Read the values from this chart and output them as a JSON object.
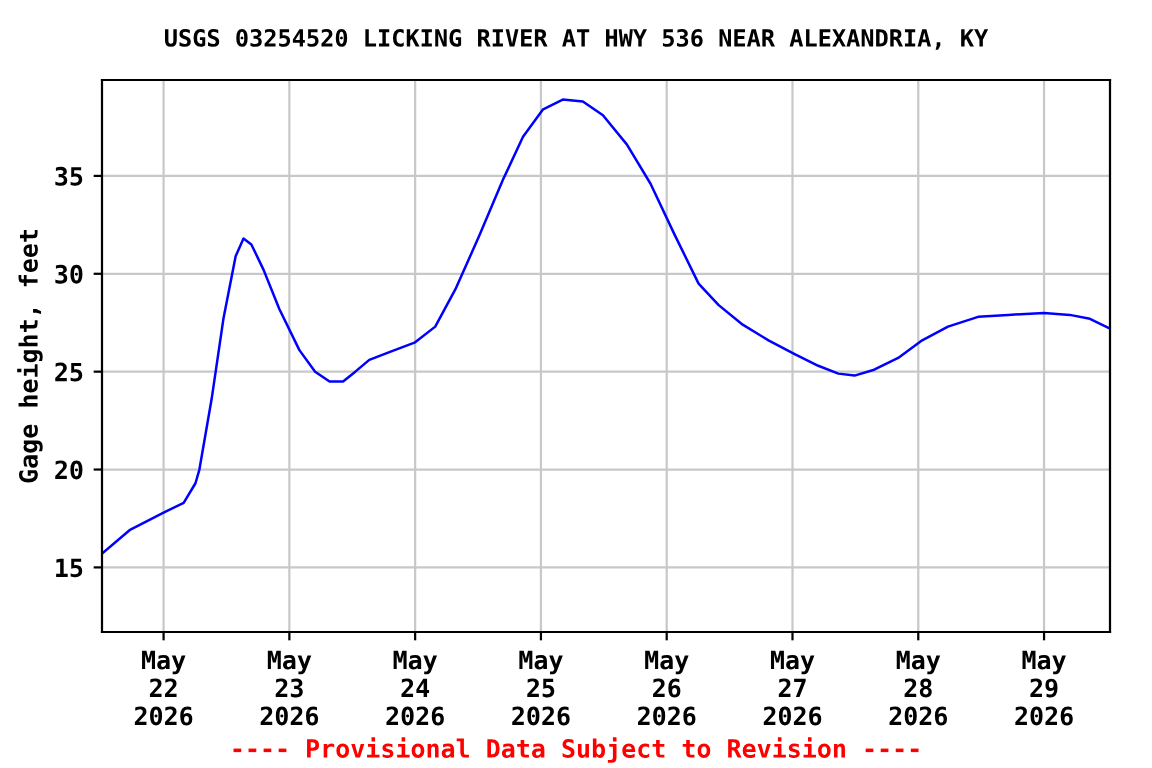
{
  "chart_data": {
    "type": "line",
    "title": "USGS 03254520 LICKING RIVER AT HWY 536 NEAR ALEXANDRIA, KY",
    "ylabel": "Gage height, feet",
    "annotations": [
      "---- Provisional Data Subject to Revision ----"
    ],
    "x": [
      "2026-05-21T12:15",
      "2026-05-21T17:30",
      "2026-05-22T00:00",
      "2026-05-22T03:50",
      "2026-05-22T06:05",
      "2026-05-22T06:50",
      "2026-05-22T09:10",
      "2026-05-22T11:25",
      "2026-05-22T13:45",
      "2026-05-22T15:15",
      "2026-05-22T16:45",
      "2026-05-22T19:05",
      "2026-05-22T22:05",
      "2026-05-23T01:55",
      "2026-05-23T04:55",
      "2026-05-23T07:40",
      "2026-05-23T10:15",
      "2026-05-23T12:35",
      "2026-05-23T15:15",
      "2026-05-23T19:05",
      "2026-05-24T00:00",
      "2026-05-24T03:50",
      "2026-05-24T07:40",
      "2026-05-24T12:10",
      "2026-05-24T16:45",
      "2026-05-24T20:35",
      "2026-05-25T00:25",
      "2026-05-25T04:10",
      "2026-05-25T08:00",
      "2026-05-25T11:50",
      "2026-05-25T16:25",
      "2026-05-25T20:55",
      "2026-05-26T01:30",
      "2026-05-26T06:05",
      "2026-05-26T09:55",
      "2026-05-26T14:30",
      "2026-05-26T19:25",
      "2026-05-27T00:25",
      "2026-05-27T04:55",
      "2026-05-27T08:45",
      "2026-05-27T11:50",
      "2026-05-27T15:35",
      "2026-05-27T20:10",
      "2026-05-28T00:45",
      "2026-05-28T05:40",
      "2026-05-28T11:25",
      "2026-05-28T17:10",
      "2026-05-29T00:00",
      "2026-05-29T04:55",
      "2026-05-29T08:45",
      "2026-05-29T12:35"
    ],
    "series": [
      {
        "color": "#0000ff",
        "values": [
          15.7,
          16.9,
          17.8,
          18.3,
          19.3,
          20.0,
          23.6,
          27.7,
          30.9,
          31.8,
          31.5,
          30.2,
          28.2,
          26.1,
          25.0,
          24.5,
          24.5,
          25.0,
          25.6,
          26.0,
          26.5,
          27.3,
          29.2,
          31.9,
          34.8,
          37.0,
          38.4,
          38.9,
          38.8,
          38.1,
          36.6,
          34.6,
          32.0,
          29.5,
          28.4,
          27.4,
          26.6,
          25.9,
          25.3,
          24.9,
          24.8,
          25.1,
          25.7,
          26.6,
          27.3,
          27.8,
          27.9,
          28.0,
          27.9,
          27.7,
          27.2
        ]
      }
    ],
    "xlim": [
      "2026-05-21T12:15",
      "2026-05-29T12:35"
    ],
    "xticks": [
      {
        "value": "2026-05-22",
        "label": "May\n22\n2026"
      },
      {
        "value": "2026-05-23",
        "label": "May\n23\n2026"
      },
      {
        "value": "2026-05-24",
        "label": "May\n24\n2026"
      },
      {
        "value": "2026-05-25",
        "label": "May\n25\n2026"
      },
      {
        "value": "2026-05-26",
        "label": "May\n26\n2026"
      },
      {
        "value": "2026-05-27",
        "label": "May\n27\n2026"
      },
      {
        "value": "2026-05-28",
        "label": "May\n28\n2026"
      },
      {
        "value": "2026-05-29",
        "label": "May\n29\n2026"
      }
    ],
    "ylim": [
      11.7,
      39.9
    ],
    "yticks": [
      15,
      20,
      25,
      30,
      35
    ],
    "grid": true,
    "legend": false,
    "marker": "none",
    "line_style": "solid"
  }
}
